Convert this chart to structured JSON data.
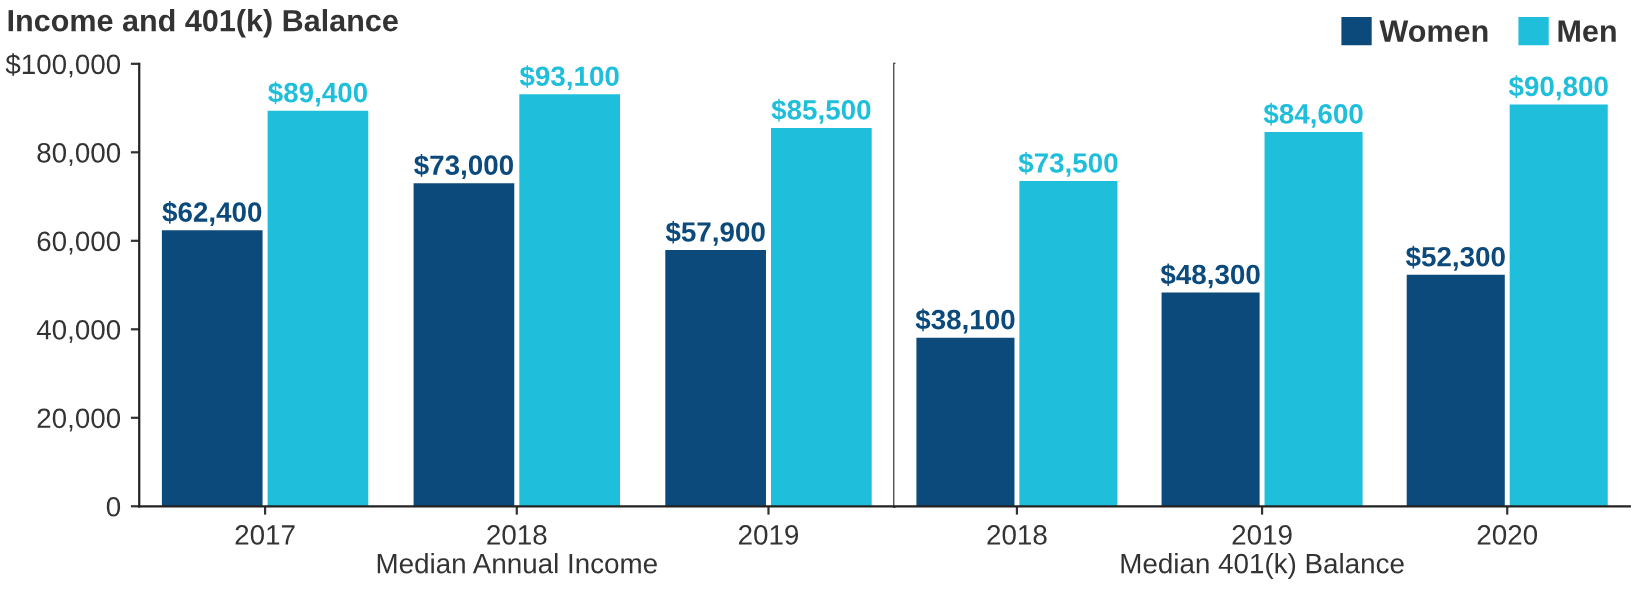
{
  "chart_data": [
    {
      "type": "bar",
      "title": "Income and 401(k) Balance",
      "xlabel": "Median Annual Income",
      "categories": [
        "2017",
        "2018",
        "2019"
      ],
      "series": [
        {
          "name": "Women",
          "color": "#0b4a7a",
          "values": [
            62400,
            73000,
            57900
          ],
          "value_labels": [
            "$62,400",
            "$73,000",
            "$57,900"
          ]
        },
        {
          "name": "Men",
          "color": "#1fbfdc",
          "values": [
            89400,
            93100,
            85500
          ],
          "value_labels": [
            "$89,400",
            "$93,100",
            "$85,500"
          ]
        }
      ],
      "ylim": [
        0,
        100000
      ],
      "yticks": [
        0,
        {
          "value": 20000,
          "label": "20,000"
        },
        {
          "value": 40000,
          "label": "40,000"
        },
        {
          "value": 60000,
          "label": "60,000"
        },
        {
          "value": 80000,
          "label": "80,000"
        },
        {
          "value": 100000,
          "label": "$100,000"
        }
      ],
      "grid": false,
      "legend": "top right"
    },
    {
      "type": "bar",
      "xlabel": "Median 401(k) Balance",
      "categories": [
        "2018",
        "2019",
        "2020"
      ],
      "series": [
        {
          "color": "#0b4a7a",
          "values": [
            38100,
            48300,
            52300
          ],
          "value_labels": [
            "$38,100",
            "$48,300",
            "$52,300"
          ]
        },
        {
          "color": "#1fbfdc",
          "values": [
            73500,
            84600,
            90800
          ],
          "value_labels": [
            "$73,500",
            "$84,600",
            "$90,800"
          ]
        }
      ],
      "ylim": [
        0,
        100000
      ],
      "tick_labels": "x",
      "grid": false
    }
  ]
}
